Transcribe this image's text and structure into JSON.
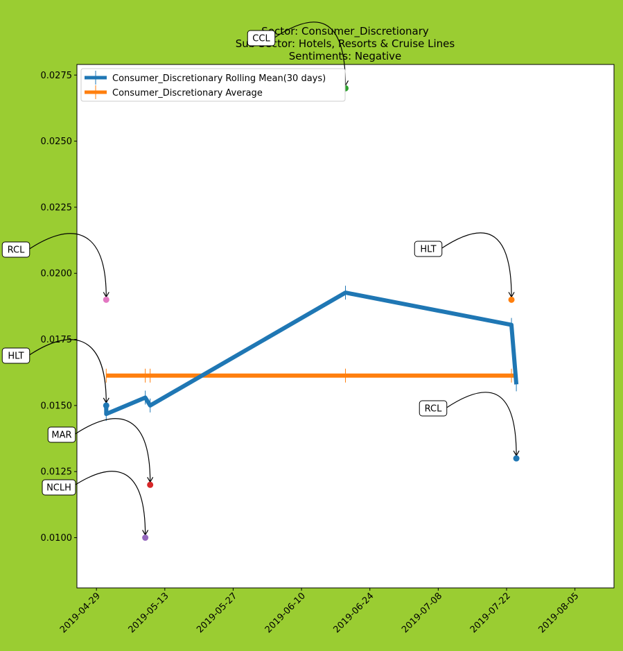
{
  "chart_data": {
    "type": "line",
    "title": [
      "Sector:  Consumer_Discretionary",
      "Sub Sector:  Hotels, Resorts & Cruise Lines",
      "Sentiments:  Negative"
    ],
    "xlabel": "",
    "ylabel": "",
    "xlim": [
      "2019-04-25",
      "2019-08-13"
    ],
    "ylim": [
      0.0081,
      0.0279
    ],
    "x_ticks": [
      "2019-04-29",
      "2019-05-13",
      "2019-05-27",
      "2019-06-10",
      "2019-06-24",
      "2019-07-08",
      "2019-07-22",
      "2019-08-05"
    ],
    "y_ticks": [
      "0.0100",
      "0.0125",
      "0.0150",
      "0.0175",
      "0.0200",
      "0.0225",
      "0.0250",
      "0.0275"
    ],
    "grid": false,
    "legend_position": "top-left",
    "series": [
      {
        "name": "Consumer_Discretionary Rolling Mean(30 days)",
        "color": "#1f77b4",
        "points": [
          {
            "x": "2019-05-01",
            "y": 0.01495
          },
          {
            "x": "2019-05-01",
            "y": 0.01468
          },
          {
            "x": "2019-05-09",
            "y": 0.0153
          },
          {
            "x": "2019-05-10",
            "y": 0.015
          },
          {
            "x": "2019-06-19",
            "y": 0.01927
          },
          {
            "x": "2019-07-23",
            "y": 0.01805
          },
          {
            "x": "2019-07-24",
            "y": 0.0158
          }
        ]
      },
      {
        "name": "Consumer_Discretionary Average",
        "color": "#ff7f0e",
        "points": [
          {
            "x": "2019-05-01",
            "y": 0.01613
          },
          {
            "x": "2019-05-09",
            "y": 0.01613
          },
          {
            "x": "2019-05-10",
            "y": 0.01613
          },
          {
            "x": "2019-06-19",
            "y": 0.01613
          },
          {
            "x": "2019-07-23",
            "y": 0.01613
          },
          {
            "x": "2019-07-24",
            "y": 0.01613
          }
        ]
      }
    ],
    "annotations": [
      {
        "label": "CCL",
        "x": "2019-06-19",
        "y": 0.027,
        "color": "#2ca02c"
      },
      {
        "label": "RCL",
        "x": "2019-05-01",
        "y": 0.019,
        "color": "#e377c2"
      },
      {
        "label": "HLT",
        "x": "2019-07-23",
        "y": 0.019,
        "color": "#ff7f0e"
      },
      {
        "label": "HLT",
        "x": "2019-05-01",
        "y": 0.015,
        "color": "#1f77b4"
      },
      {
        "label": "RCL",
        "x": "2019-07-24",
        "y": 0.013,
        "color": "#1f77b4"
      },
      {
        "label": "MAR",
        "x": "2019-05-10",
        "y": 0.012,
        "color": "#d62728"
      },
      {
        "label": "NCLH",
        "x": "2019-05-09",
        "y": 0.01,
        "color": "#9467bd"
      }
    ]
  }
}
